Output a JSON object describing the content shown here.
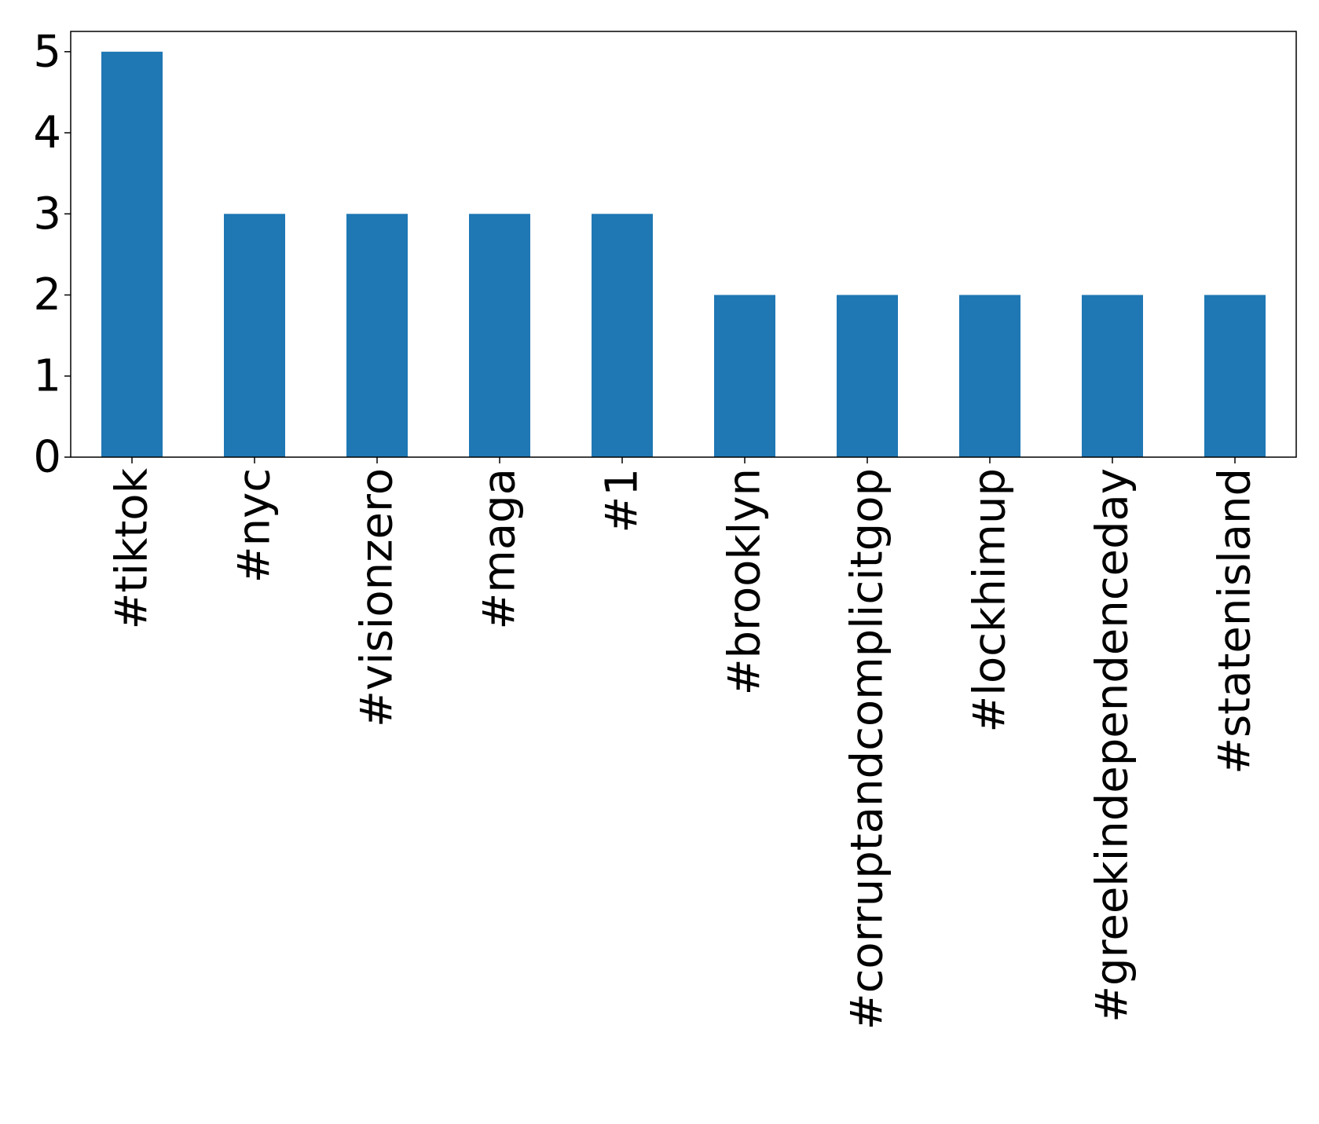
{
  "chart_data": {
    "type": "bar",
    "title": "",
    "xlabel": "",
    "ylabel": "",
    "categories": [
      "#tiktok",
      "#nyc",
      "#visionzero",
      "#maga",
      "#1",
      "#brooklyn",
      "#corruptandcomplicitgop",
      "#lockhimup",
      "#greekindependenceday",
      "#statenisland"
    ],
    "values": [
      5,
      3,
      3,
      3,
      3,
      2,
      2,
      2,
      2,
      2
    ],
    "yticks": [
      0,
      1,
      2,
      3,
      4,
      5
    ],
    "ylim": [
      0,
      5.25
    ],
    "grid": false,
    "legend": "none",
    "bar_color": "#1f77b4"
  }
}
